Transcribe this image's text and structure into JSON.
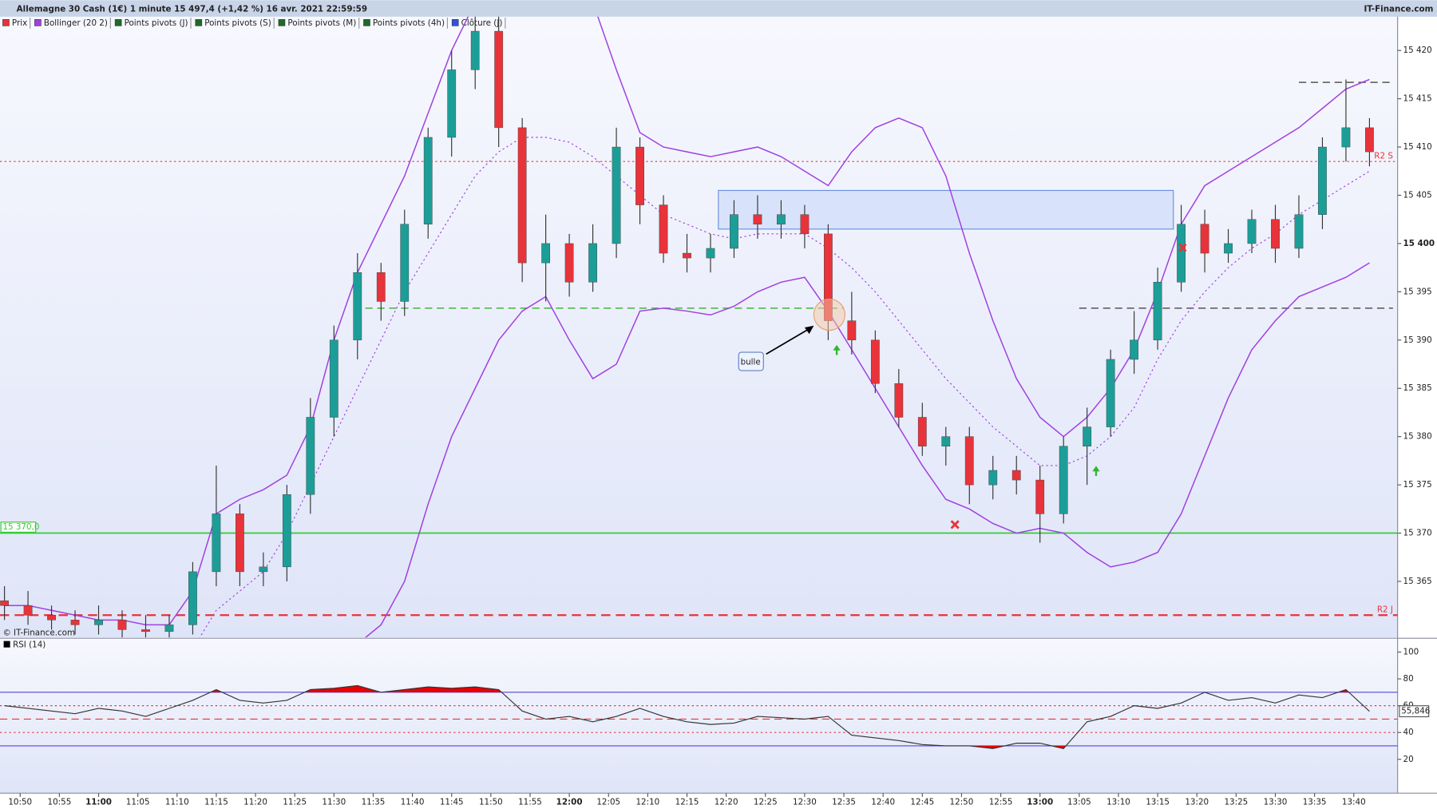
{
  "chart_data": {
    "type": "candlestick",
    "title": "Allemagne 30 Cash (1€) 1 minute 15 497,4 (+1,42 %) 16 avr. 2021 22:59:59",
    "source": "IT-Finance.com",
    "copyright": "© IT-Finance.com",
    "legend": [
      {
        "name": "Prix",
        "color": "#e8333a"
      },
      {
        "name": "Bollinger (20 2)",
        "color": "#a040e0"
      },
      {
        "name": "Points pivots (J)",
        "color": "#1d6b2a"
      },
      {
        "name": "Points pivots (S)",
        "color": "#1d6b2a"
      },
      {
        "name": "Points pivots (M)",
        "color": "#1d6b2a"
      },
      {
        "name": "Points pivots (4h)",
        "color": "#1d6b2a"
      },
      {
        "name": "Clôture (J)",
        "color": "#3050e0"
      }
    ],
    "x": [
      "10:48",
      "10:51",
      "10:54",
      "10:57",
      "11:00",
      "11:03",
      "11:06",
      "11:09",
      "11:12",
      "11:15",
      "11:18",
      "11:21",
      "11:24",
      "11:27",
      "11:30",
      "11:33",
      "11:36",
      "11:39",
      "11:42",
      "11:45",
      "11:48",
      "11:51",
      "11:54",
      "11:57",
      "12:00",
      "12:03",
      "12:06",
      "12:09",
      "12:12",
      "12:15",
      "12:18",
      "12:21",
      "12:24",
      "12:27",
      "12:30",
      "12:33",
      "12:36",
      "12:39",
      "12:42",
      "12:45",
      "12:48",
      "12:51",
      "12:54",
      "12:57",
      "13:00",
      "13:03",
      "13:06",
      "13:09",
      "13:12",
      "13:15",
      "13:18",
      "13:21",
      "13:24",
      "13:27",
      "13:30",
      "13:33",
      "13:36",
      "13:39",
      "13:42"
    ],
    "open": [
      15363,
      15362.5,
      15361.5,
      15361,
      15360.5,
      15361,
      15360,
      15359.8,
      15360.5,
      15366,
      15372,
      15366,
      15366.5,
      15374,
      15382,
      15390,
      15397,
      15394,
      15402,
      15411,
      15418,
      15422,
      15412,
      15398,
      15400,
      15396,
      15400,
      15410,
      15404,
      15399,
      15398.5,
      15399.5,
      15403,
      15402,
      15403,
      15401,
      15392,
      15390,
      15385.5,
      15382,
      15379,
      15380,
      15375,
      15376.5,
      15375.5,
      15372,
      15379,
      15381,
      15388,
      15390,
      15396,
      15402,
      15399,
      15400,
      15402.5,
      15399.5,
      15403,
      15410,
      15412
    ],
    "high": [
      15364.5,
      15364,
      15362.5,
      15362,
      15362.5,
      15362,
      15361.5,
      15361.5,
      15367,
      15377,
      15373,
      15368,
      15375,
      15384,
      15391.5,
      15399,
      15398,
      15403.5,
      15412,
      15420,
      15424,
      15424,
      15413,
      15403,
      15401,
      15402,
      15412,
      15411,
      15405,
      15401,
      15401,
      15404.5,
      15405,
      15404.5,
      15404,
      15402,
      15395,
      15391,
      15387,
      15383.5,
      15381,
      15381,
      15378,
      15378,
      15377,
      15380,
      15383,
      15389,
      15393,
      15397.5,
      15404,
      15403.5,
      15401.5,
      15403.5,
      15404,
      15405,
      15411,
      15417,
      15413
    ],
    "low": [
      15361,
      15360.5,
      15360,
      15359.5,
      15359.5,
      15359,
      15358.5,
      15358.5,
      15359.5,
      15364.5,
      15364.5,
      15364.5,
      15365,
      15372,
      15380,
      15388,
      15392,
      15392.5,
      15400.5,
      15409,
      15416,
      15410,
      15396,
      15394,
      15394.5,
      15395,
      15398.5,
      15402,
      15398,
      15397,
      15397,
      15398.5,
      15400.5,
      15400.5,
      15399.5,
      15390,
      15388.5,
      15384.5,
      15381,
      15378,
      15377,
      15373,
      15373.5,
      15374,
      15369,
      15371,
      15375,
      15380,
      15386.5,
      15389,
      15395,
      15397,
      15398,
      15399,
      15398,
      15398.5,
      15401.5,
      15408.5,
      15408
    ],
    "close": [
      15362.5,
      15361.5,
      15361,
      15360.5,
      15361,
      15360,
      15359.8,
      15360.5,
      15366,
      15372,
      15366,
      15366.5,
      15374,
      15382,
      15390,
      15397,
      15394,
      15402,
      15411,
      15418,
      15422,
      15412,
      15398,
      15400,
      15396,
      15400,
      15410,
      15404,
      15399,
      15398.5,
      15399.5,
      15403,
      15402,
      15403,
      15401,
      15392,
      15390,
      15385.5,
      15382,
      15379,
      15380,
      15375,
      15376.5,
      15375.5,
      15372,
      15379,
      15381,
      15388,
      15390,
      15396,
      15402,
      15399,
      15400,
      15402.5,
      15399.5,
      15403,
      15410,
      15412,
      15409.5
    ],
    "up_color": "#1c9e98",
    "down_color": "#e8333a",
    "bollinger": {
      "color": "#a040e0",
      "upper": [
        15362.5,
        15362.5,
        15362,
        15361.5,
        15361,
        15361,
        15360.5,
        15360.5,
        15364,
        15372,
        15373.5,
        15374.5,
        15376,
        15381,
        15390,
        15397,
        15402,
        15407,
        15413.5,
        15420,
        15425,
        15428,
        15429,
        15429,
        15428,
        15425,
        15418,
        15411.5,
        15410,
        15409.5,
        15409,
        15409.5,
        15410,
        15409,
        15407.5,
        15406,
        15409.5,
        15412,
        15413,
        15412,
        15407,
        15399,
        15392,
        15386,
        15382,
        15380,
        15382,
        15385,
        15389,
        15395,
        15402,
        15406,
        15407.5,
        15409,
        15410.5,
        15412,
        15414,
        15416,
        15417
      ],
      "middle": [
        15350,
        15350.5,
        15351,
        15351,
        15351.5,
        15352,
        15353,
        15355,
        15358,
        15362,
        15364,
        15366,
        15370,
        15375,
        15380,
        15385,
        15390,
        15395,
        15399,
        15403,
        15407,
        15409.5,
        15411,
        15411,
        15410.5,
        15409,
        15407,
        15405,
        15403,
        15402,
        15401,
        15400.5,
        15401,
        15401,
        15401,
        15399.5,
        15397.5,
        15395,
        15392,
        15389,
        15386,
        15383.5,
        15381,
        15379,
        15377,
        15377,
        15378,
        15380,
        15383,
        15388,
        15392,
        15395,
        15397.5,
        15399.5,
        15401,
        15403,
        15404.5,
        15406,
        15407.5
      ],
      "lower": [
        15338,
        15338,
        15339,
        15340,
        15341,
        15342,
        15343,
        15344,
        15345,
        15347,
        15349,
        15351,
        15353,
        15355,
        15357,
        15358.5,
        15360.5,
        15365,
        15373,
        15380,
        15385,
        15390,
        15393,
        15394.5,
        15390,
        15386,
        15387.5,
        15393,
        15393.3,
        15393,
        15392.6,
        15393.5,
        15395,
        15396,
        15396.5,
        15393,
        15389,
        15385,
        15381,
        15377,
        15373.5,
        15372.5,
        15371,
        15370,
        15370.5,
        15370,
        15368,
        15366.5,
        15367,
        15368,
        15372,
        15378,
        15384,
        15389,
        15392,
        15394.5,
        15395.5,
        15396.5,
        15398
      ]
    },
    "ylim": [
      15359.2,
      15423.5
    ],
    "yticks": [
      {
        "value": 15365,
        "label": "15 365"
      },
      {
        "value": 15370,
        "label": "15 370"
      },
      {
        "value": 15375,
        "label": "15 375"
      },
      {
        "value": 15380,
        "label": "15 380"
      },
      {
        "value": 15385,
        "label": "15 385"
      },
      {
        "value": 15390,
        "label": "15 390"
      },
      {
        "value": 15395,
        "label": "15 395"
      },
      {
        "value": 15400,
        "label": "15 400"
      },
      {
        "value": 15405,
        "label": "15 405"
      },
      {
        "value": 15410,
        "label": "15 410"
      },
      {
        "value": 15415,
        "label": "15 415"
      },
      {
        "value": 15420,
        "label": "15 420"
      }
    ],
    "bold_tick": 15400,
    "xticks": [
      "10:50",
      "10:55",
      "11:00",
      "11:05",
      "11:10",
      "11:15",
      "11:20",
      "11:25",
      "11:30",
      "11:35",
      "11:40",
      "11:45",
      "11:50",
      "11:55",
      "12:00",
      "12:05",
      "12:10",
      "12:15",
      "12:20",
      "12:25",
      "12:30",
      "12:35",
      "12:40",
      "12:45",
      "12:50",
      "12:55",
      "13:00",
      "13:05",
      "13:10",
      "13:15",
      "13:20",
      "13:25",
      "13:30",
      "13:35",
      "13:40"
    ],
    "levels": [
      {
        "value": 15408.5,
        "color": "#e8333a",
        "dash": "2 3",
        "width": 1,
        "label": "R2 S",
        "label_position": "right"
      },
      {
        "value": 15361.5,
        "color": "#e8333a",
        "dash": "10 6",
        "width": 2,
        "label": "R2 J",
        "label_position": "right"
      },
      {
        "value": 15370,
        "color": "#33cc33",
        "dash": "none",
        "width": 1.5,
        "label": "15 370,0",
        "label_position": "left"
      }
    ],
    "segments": [
      {
        "value": 15393.3,
        "from": "11:34",
        "to": "12:35",
        "color": "#3cb83c",
        "dash": "8 5"
      },
      {
        "value": 15393.3,
        "from": "13:05",
        "to": "13:45",
        "color": "#555555",
        "dash": "8 5"
      },
      {
        "value": 15416.7,
        "from": "13:33",
        "to": "13:45",
        "color": "#555555",
        "dash": "8 5"
      }
    ],
    "zone": {
      "from": "12:19",
      "to": "13:17",
      "low": 15401.5,
      "high": 15405.5
    },
    "annotation": "bulle",
    "rsi": {
      "label": "RSI (14)",
      "color": "#333333",
      "fill": "#e80000",
      "values": [
        60,
        58,
        56,
        54,
        58,
        56,
        52,
        58,
        64,
        72,
        64,
        62,
        64,
        72,
        73,
        75,
        70,
        72,
        74,
        73,
        74,
        72,
        56,
        50,
        52,
        48,
        52,
        58,
        52,
        48,
        46,
        47,
        52,
        51,
        50,
        52,
        38,
        36,
        34,
        31,
        30,
        30,
        28,
        32,
        32,
        28,
        48,
        52,
        60,
        58,
        62,
        70,
        64,
        66,
        62,
        68,
        66,
        72,
        55.8
      ],
      "ylim": [
        -5.3,
        109.6
      ],
      "yticks": [
        20,
        40,
        60,
        80,
        100
      ],
      "upper": 70,
      "lower": 30,
      "levels": [
        {
          "value": 70,
          "color": "#4a4ae0",
          "dash": "none"
        },
        {
          "value": 30,
          "color": "#4a4ae0",
          "dash": "none"
        },
        {
          "value": 60,
          "color": "#e8333a",
          "dash": "2 3"
        },
        {
          "value": 40,
          "color": "#e8333a",
          "dash": "2 3"
        },
        {
          "value": 50,
          "color": "#e8333a",
          "dash": "8 5"
        }
      ],
      "current": {
        "value": 55.846,
        "label": "55,846"
      }
    }
  }
}
